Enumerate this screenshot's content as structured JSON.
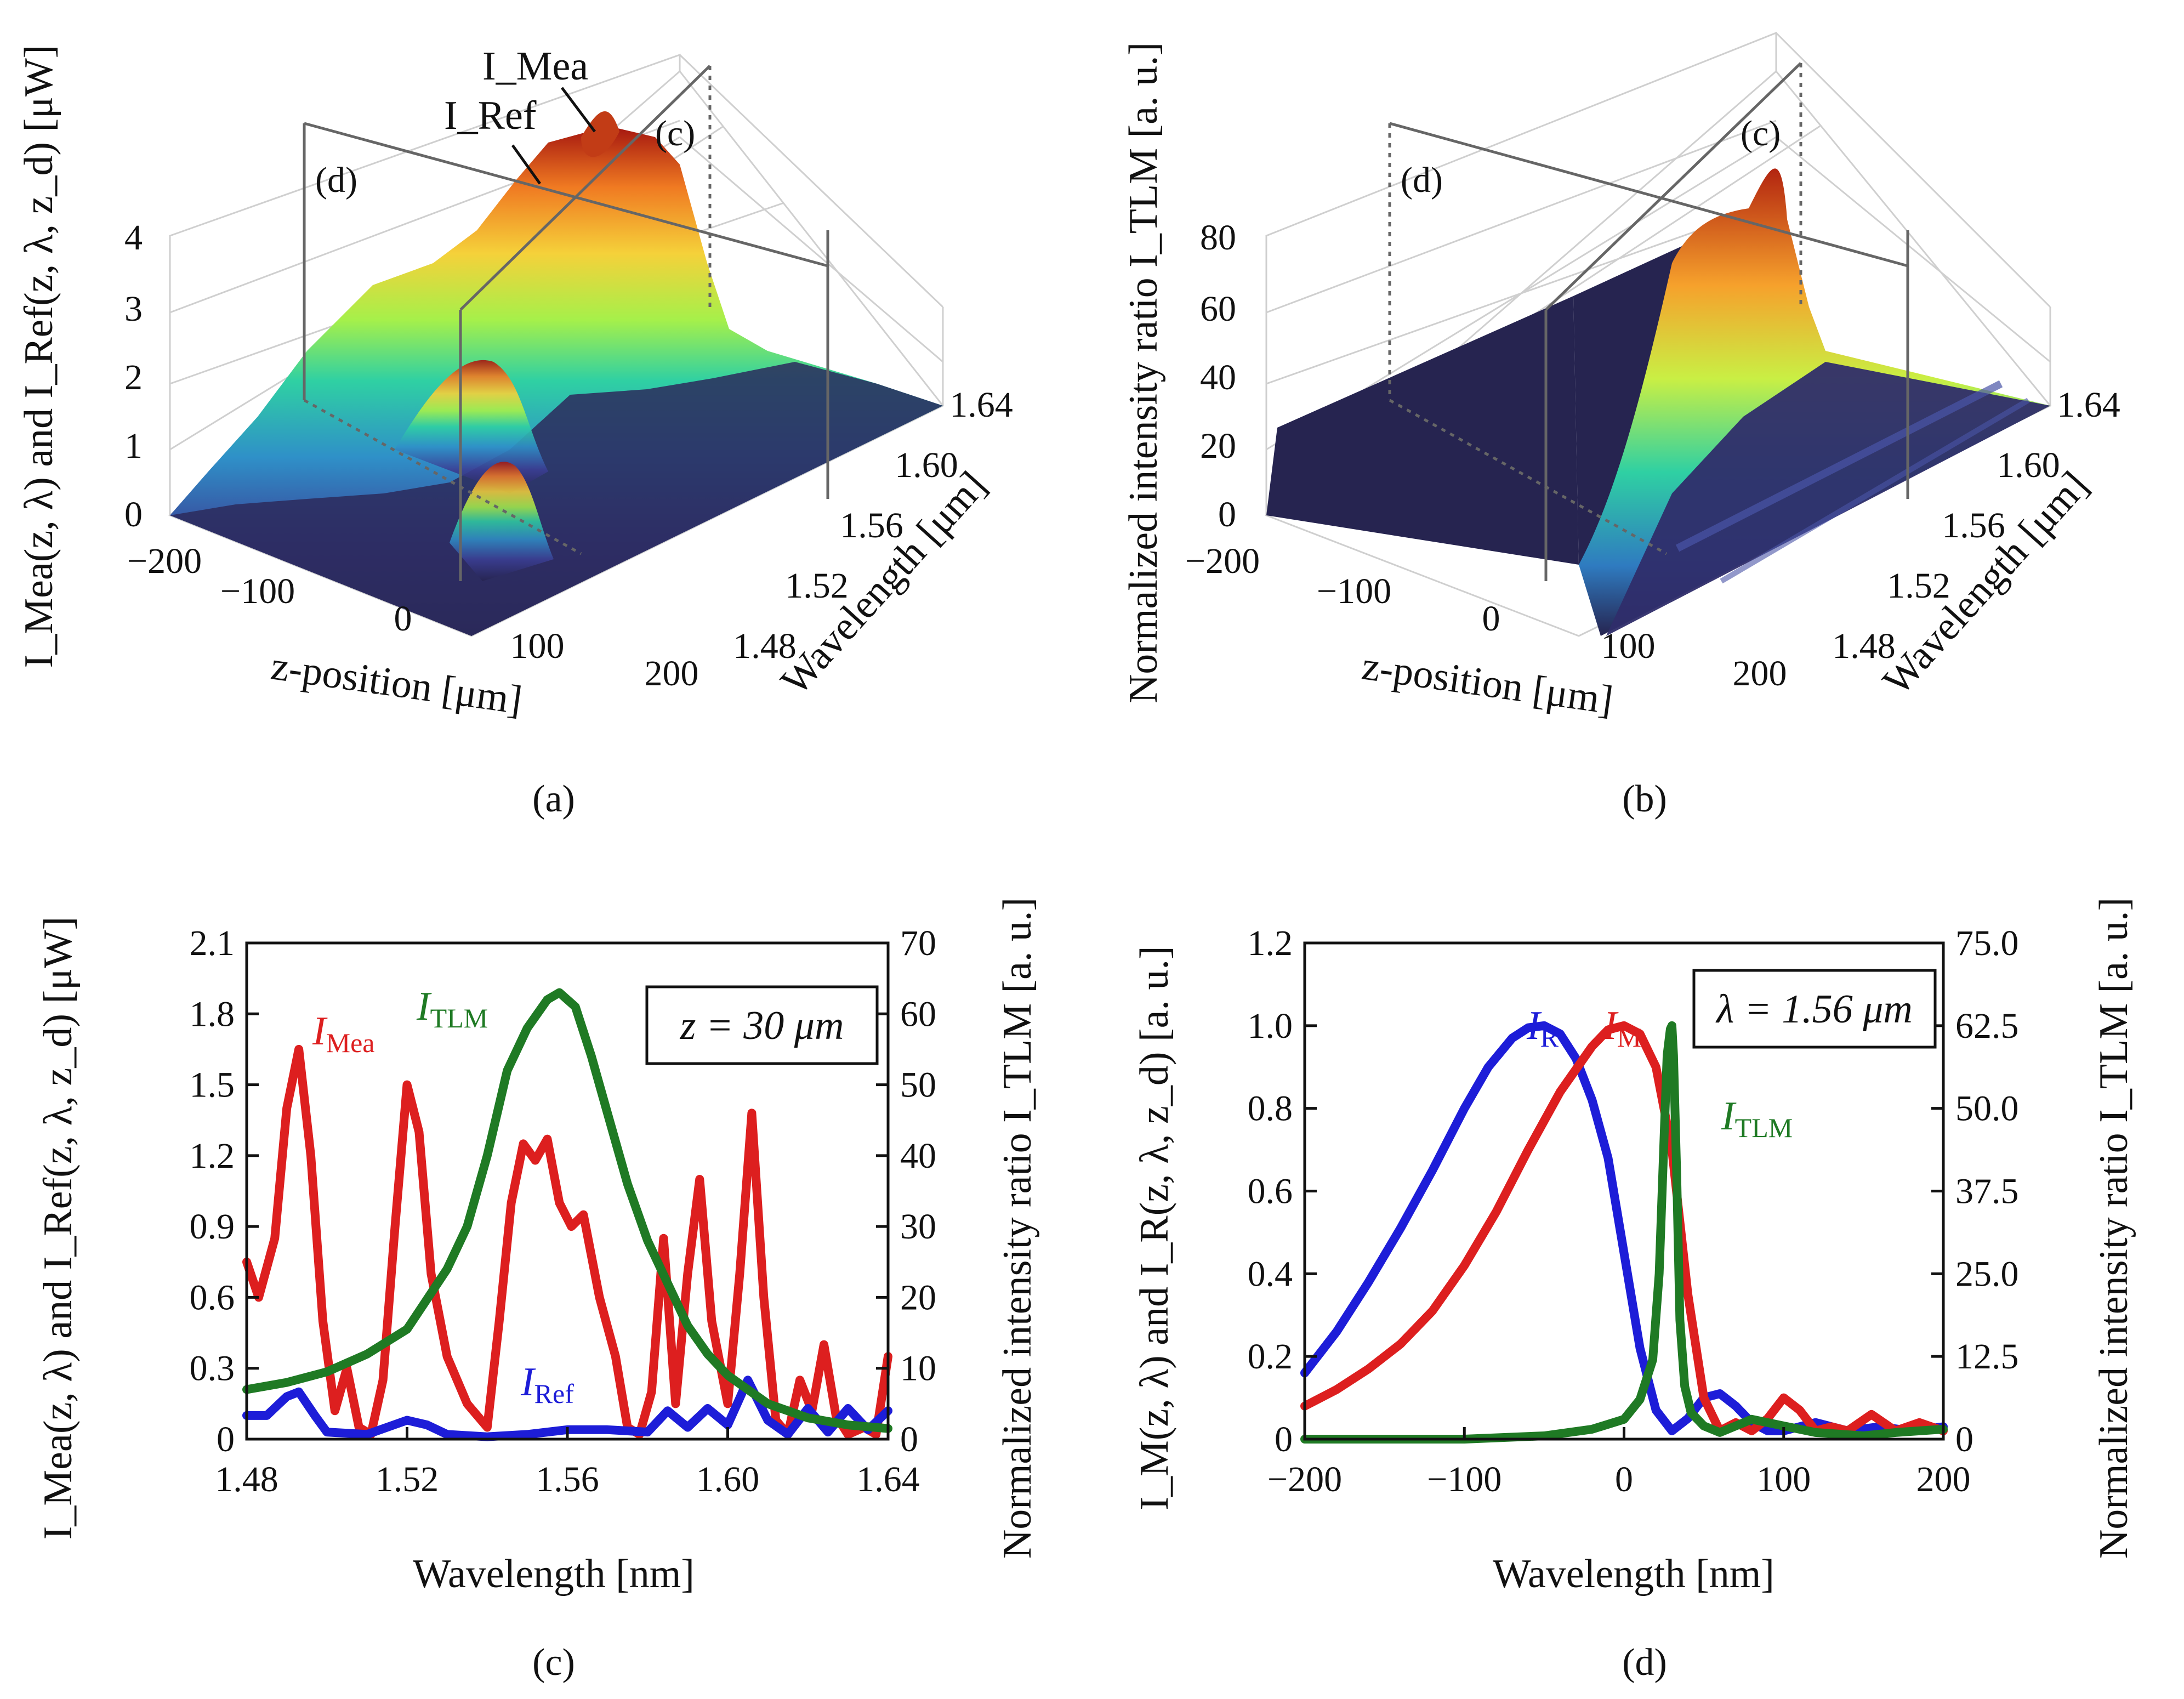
{
  "colors": {
    "mea": "#dd1f1f",
    "ref": "#1d1dd8",
    "tlm": "#1f7a24",
    "axis": "#111111",
    "grid": "#cfcfcf",
    "floor": "#262450"
  },
  "panels": {
    "a": {
      "caption": "(a)",
      "zlabel": "I_Mea(z, λ) and I_Ref(z, λ, z_d)  [μW]",
      "z_ticks": [
        "0",
        "1",
        "2",
        "3",
        "4"
      ],
      "x_ticks": [
        "−200",
        "−100",
        "0",
        "100",
        "200"
      ],
      "xlabel": "z-position  [μm]",
      "y_ticks": [
        "1.48",
        "1.52",
        "1.56",
        "1.60",
        "1.64"
      ],
      "ylabel": "Wavelength  [μm]",
      "plane_labels": [
        "(d)",
        "(c)"
      ],
      "annotations": [
        "I_Mea",
        "I_Ref"
      ]
    },
    "b": {
      "caption": "(b)",
      "zlabel": "Normalized intensity ratio I_TLM [a. u.]",
      "z_ticks": [
        "0",
        "20",
        "40",
        "60",
        "80"
      ],
      "x_ticks": [
        "−200",
        "−100",
        "0",
        "100",
        "200"
      ],
      "xlabel": "z-position  [μm]",
      "y_ticks": [
        "1.48",
        "1.52",
        "1.56",
        "1.60",
        "1.64"
      ],
      "ylabel": "Wavelength  [μm]",
      "plane_labels": [
        "(d)",
        "(c)"
      ]
    },
    "c": {
      "caption": "(c)"
    },
    "d": {
      "caption": "(d)"
    }
  },
  "chart_data": [
    {
      "id": "a",
      "type": "surface",
      "title": "",
      "xlabel": "z-position [μm]",
      "ylabel": "Wavelength [μm]",
      "zlabel": "I_Mea(z, λ) and I_Ref(z, λ, z_d) [μW]",
      "xlim": [
        -200,
        200
      ],
      "ylim": [
        1.48,
        1.64
      ],
      "zlim": [
        0,
        4
      ],
      "series": [
        {
          "name": "I_Mea",
          "peak": {
            "z": 0,
            "lambda": 1.56,
            "value": 3.7
          }
        },
        {
          "name": "I_Ref"
        }
      ]
    },
    {
      "id": "b",
      "type": "surface",
      "xlabel": "z-position [μm]",
      "ylabel": "Wavelength [μm]",
      "zlabel": "Normalized intensity ratio I_TLM [a. u.]",
      "xlim": [
        -200,
        200
      ],
      "ylim": [
        1.48,
        1.64
      ],
      "zlim": [
        0,
        80
      ],
      "series": [
        {
          "name": "I_TLM",
          "peak": {
            "z": 30,
            "lambda": 1.6,
            "value": 80
          }
        }
      ]
    },
    {
      "id": "c",
      "type": "line",
      "xlabel": "Wavelength    [nm]",
      "ylabel": "I_Mea(z, λ) and I_Ref(z, λ, z_d)  [μW]",
      "y2label": "Normalized intensity ratio I_TLM   [a. u.]",
      "xlim": [
        1.48,
        1.64
      ],
      "ylim": [
        0,
        2.1
      ],
      "y2lim": [
        0,
        70
      ],
      "x_ticks": [
        "1.48",
        "1.52",
        "1.56",
        "1.60",
        "1.64"
      ],
      "y_ticks": [
        "0",
        "0.3",
        "0.6",
        "0.9",
        "1.2",
        "1.5",
        "1.8",
        "2.1"
      ],
      "y2_ticks": [
        "0",
        "10",
        "20",
        "30",
        "40",
        "50",
        "60",
        "70"
      ],
      "legend": "z = 30 μm",
      "series": [
        {
          "name": "I_Mea",
          "axis": "left",
          "x": [
            1.48,
            1.483,
            1.487,
            1.49,
            1.493,
            1.496,
            1.499,
            1.502,
            1.505,
            1.508,
            1.511,
            1.514,
            1.517,
            1.52,
            1.523,
            1.526,
            1.53,
            1.535,
            1.54,
            1.543,
            1.546,
            1.549,
            1.552,
            1.555,
            1.558,
            1.561,
            1.564,
            1.568,
            1.572,
            1.575,
            1.578,
            1.581,
            1.584,
            1.587,
            1.59,
            1.593,
            1.596,
            1.6,
            1.603,
            1.606,
            1.609,
            1.612,
            1.615,
            1.618,
            1.621,
            1.624,
            1.627,
            1.63,
            1.634,
            1.637,
            1.64
          ],
          "y": [
            0.75,
            0.6,
            0.85,
            1.4,
            1.65,
            1.2,
            0.5,
            0.12,
            0.3,
            0.05,
            0.02,
            0.25,
            0.9,
            1.5,
            1.3,
            0.7,
            0.35,
            0.15,
            0.05,
            0.5,
            1.0,
            1.25,
            1.18,
            1.27,
            1.0,
            0.9,
            0.95,
            0.6,
            0.35,
            0.05,
            0.02,
            0.2,
            0.85,
            0.15,
            0.7,
            1.1,
            0.5,
            0.15,
            0.7,
            1.38,
            0.6,
            0.08,
            0.02,
            0.25,
            0.12,
            0.4,
            0.1,
            0.02,
            0.05,
            0.02,
            0.35
          ]
        },
        {
          "name": "I_Ref",
          "axis": "left",
          "x": [
            1.48,
            1.485,
            1.49,
            1.493,
            1.497,
            1.5,
            1.51,
            1.52,
            1.525,
            1.53,
            1.54,
            1.55,
            1.56,
            1.57,
            1.58,
            1.585,
            1.59,
            1.595,
            1.6,
            1.605,
            1.61,
            1.615,
            1.62,
            1.625,
            1.63,
            1.635,
            1.64
          ],
          "y": [
            0.1,
            0.1,
            0.18,
            0.2,
            0.1,
            0.03,
            0.02,
            0.08,
            0.06,
            0.02,
            0.01,
            0.02,
            0.04,
            0.04,
            0.03,
            0.12,
            0.05,
            0.13,
            0.06,
            0.25,
            0.08,
            0.02,
            0.13,
            0.03,
            0.13,
            0.04,
            0.12
          ]
        },
        {
          "name": "I_TLM",
          "axis": "right",
          "x": [
            1.48,
            1.49,
            1.5,
            1.51,
            1.52,
            1.53,
            1.535,
            1.54,
            1.545,
            1.55,
            1.555,
            1.558,
            1.562,
            1.566,
            1.57,
            1.575,
            1.58,
            1.585,
            1.59,
            1.595,
            1.6,
            1.61,
            1.62,
            1.63,
            1.64
          ],
          "y": [
            7,
            8,
            9.5,
            12,
            15.5,
            24,
            30,
            40,
            52,
            58,
            62,
            63,
            61,
            54,
            46,
            36,
            28,
            22,
            16,
            12,
            9,
            5,
            3,
            2,
            1.5
          ]
        }
      ]
    },
    {
      "id": "d",
      "type": "line",
      "xlabel": "Wavelength    [nm]",
      "ylabel": "I_M(z, λ) and I_R(z, λ, z_d)  [a. u.]",
      "y2label": "Normalized intensity ratio I_TLM   [a. u.]",
      "xlim": [
        -200,
        200
      ],
      "ylim": [
        0,
        1.2
      ],
      "y2lim": [
        0,
        75
      ],
      "x_ticks": [
        "−200",
        "−100",
        "0",
        "100",
        "200"
      ],
      "y_ticks": [
        "0",
        "0.2",
        "0.4",
        "0.6",
        "0.8",
        "1.0",
        "1.2"
      ],
      "y2_ticks": [
        "0",
        "12.5",
        "25.0",
        "37.5",
        "50.0",
        "62.5",
        "75.0"
      ],
      "legend": "λ = 1.56 μm",
      "series": [
        {
          "name": "I_R",
          "axis": "left",
          "x": [
            -200,
            -180,
            -160,
            -140,
            -120,
            -100,
            -85,
            -70,
            -60,
            -50,
            -40,
            -30,
            -20,
            -10,
            0,
            10,
            20,
            30,
            40,
            50,
            60,
            70,
            80,
            90,
            100,
            120,
            140,
            160,
            180,
            200
          ],
          "y": [
            0.16,
            0.26,
            0.38,
            0.51,
            0.65,
            0.8,
            0.9,
            0.97,
            0.995,
            1.0,
            0.98,
            0.92,
            0.82,
            0.68,
            0.45,
            0.22,
            0.07,
            0.02,
            0.05,
            0.1,
            0.11,
            0.08,
            0.04,
            0.02,
            0.02,
            0.04,
            0.02,
            0.03,
            0.02,
            0.03
          ]
        },
        {
          "name": "I_M",
          "axis": "left",
          "x": [
            -200,
            -180,
            -160,
            -140,
            -120,
            -100,
            -80,
            -60,
            -40,
            -20,
            -10,
            0,
            10,
            20,
            30,
            40,
            50,
            60,
            70,
            80,
            90,
            100,
            110,
            120,
            130,
            140,
            155,
            170,
            185,
            200
          ],
          "y": [
            0.08,
            0.12,
            0.17,
            0.23,
            0.31,
            0.42,
            0.55,
            0.7,
            0.84,
            0.95,
            0.99,
            1.0,
            0.98,
            0.9,
            0.7,
            0.35,
            0.1,
            0.02,
            0.04,
            0.02,
            0.05,
            0.1,
            0.07,
            0.02,
            0.03,
            0.02,
            0.06,
            0.02,
            0.04,
            0.02
          ]
        },
        {
          "name": "I_TLM",
          "axis": "right",
          "x": [
            -200,
            -100,
            -50,
            -20,
            0,
            10,
            18,
            22,
            25,
            27,
            29,
            30,
            31,
            33,
            35,
            38,
            42,
            50,
            60,
            80,
            100,
            120,
            150,
            170,
            200
          ],
          "y": [
            0,
            0,
            0.5,
            1.5,
            3,
            6,
            12,
            25,
            45,
            58,
            62,
            62.5,
            58,
            40,
            18,
            8,
            4,
            2,
            1,
            3,
            2,
            1,
            0.5,
            1,
            1.5
          ]
        }
      ]
    }
  ]
}
